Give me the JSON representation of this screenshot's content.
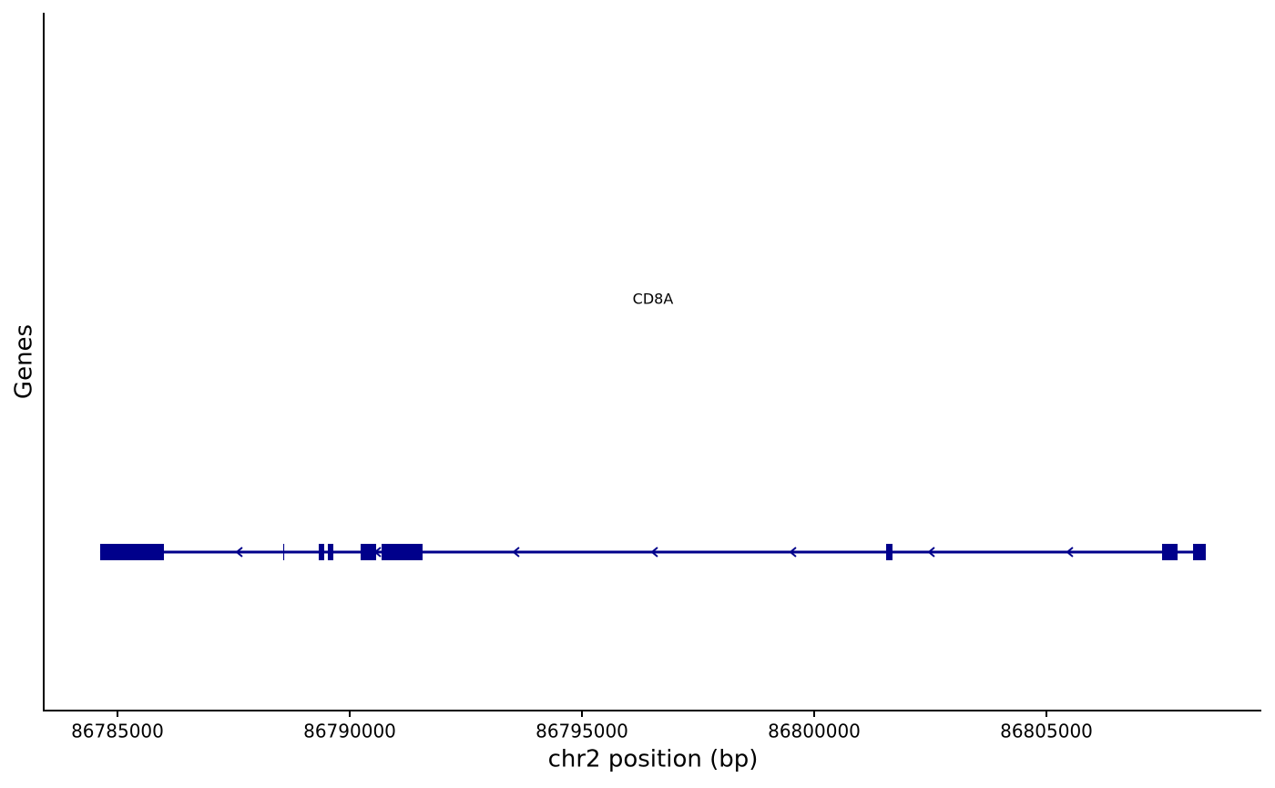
{
  "chart_data": {
    "type": "gene-track",
    "x_label": "chr2 position (bp)",
    "y_label": "Genes",
    "xlim": [
      86783412,
      86809627
    ],
    "xticks": [
      86785000,
      86790000,
      86795000,
      86800000,
      86805000
    ],
    "genes": [
      {
        "name": "CD8A",
        "color": "#00008b",
        "start": 86784627,
        "end": 86808431,
        "exons": [
          [
            86784627,
            86786000
          ],
          [
            86788569,
            86788590
          ],
          [
            86789333,
            86789451
          ],
          [
            86789529,
            86789647
          ],
          [
            86790235,
            86790569
          ],
          [
            86790686,
            86791569
          ],
          [
            86801549,
            86801686
          ],
          [
            86807490,
            86807824
          ],
          [
            86808157,
            86808431
          ]
        ]
      }
    ]
  }
}
